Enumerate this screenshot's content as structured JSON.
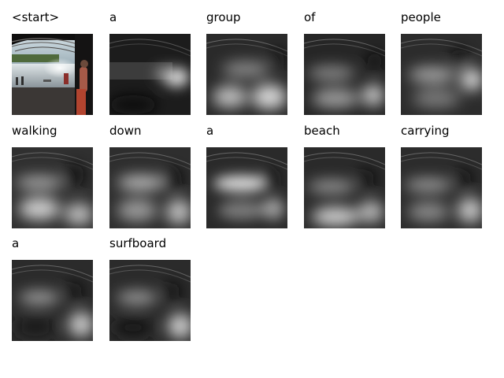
{
  "tokens": [
    "<start>",
    "a",
    "group",
    "of",
    "people",
    "walking",
    "down",
    "a",
    "beach",
    "carrying",
    "a",
    "surfboard"
  ]
}
